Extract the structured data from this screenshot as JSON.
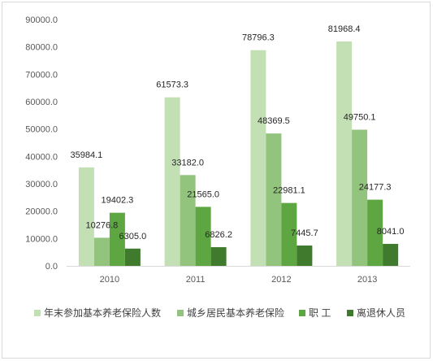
{
  "chart_data": {
    "type": "bar",
    "categories": [
      "2010",
      "2011",
      "2012",
      "2013"
    ],
    "series": [
      {
        "name": "年末参加基本养老保险人数",
        "color": "#c3dfb4",
        "values": [
          35984.1,
          61573.3,
          78796.3,
          81968.4
        ]
      },
      {
        "name": "城乡居民基本养老保险",
        "color": "#93c47d",
        "values": [
          10276.8,
          33182.0,
          48369.5,
          49750.1
        ]
      },
      {
        "name": "职 工",
        "color": "#5ea641",
        "values": [
          19402.3,
          21565.0,
          22981.1,
          24177.3
        ]
      },
      {
        "name": "离退休人员",
        "color": "#3f7a2d",
        "values": [
          6305.0,
          6826.2,
          7445.7,
          8041.0
        ]
      }
    ],
    "y_ticks": [
      "0.0",
      "10000.0",
      "20000.0",
      "30000.0",
      "40000.0",
      "50000.0",
      "60000.0",
      "70000.0",
      "80000.0",
      "90000.0"
    ],
    "data_labels": [
      [
        "35984.1",
        "61573.3",
        "78796.3",
        "81968.4"
      ],
      [
        "10276.8",
        "33182.0",
        "48369.5",
        "49750.1"
      ],
      [
        "19402.3",
        "21565.0",
        "22981.1",
        "24177.3"
      ],
      [
        "6305.0",
        "6826.2",
        "7445.7",
        "8041.0"
      ]
    ],
    "ylim": [
      0,
      90000
    ],
    "grid": false,
    "legend_position": "bottom",
    "title": "",
    "xlabel": "",
    "ylabel": ""
  }
}
